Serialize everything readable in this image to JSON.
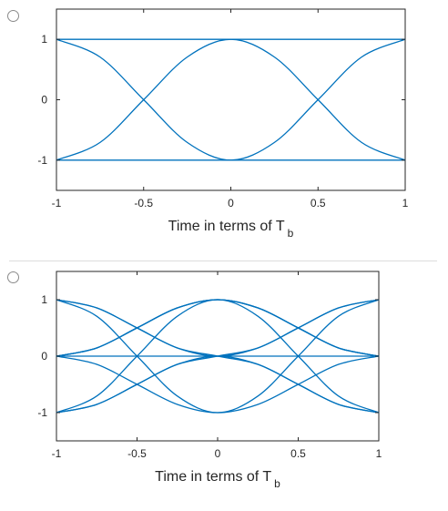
{
  "colors": {
    "curve": "#0072bd",
    "axis": "#262626",
    "radio_border": "#8a8a8a"
  },
  "options": [
    {
      "radio_selected": false,
      "chart_data": {
        "type": "line",
        "title": "",
        "xlabel": "Time in terms of T",
        "xlabel_subscript": "b",
        "ylabel": "",
        "xlim": [
          -1,
          1
        ],
        "ylim": [
          -1.5,
          1.5
        ],
        "xticks": [
          -1,
          -0.5,
          0,
          0.5,
          1
        ],
        "xtick_labels": [
          "-1",
          "-0.5",
          "0",
          "0.5",
          "1"
        ],
        "yticks": [
          1,
          0,
          -1
        ],
        "ytick_labels": [
          "1",
          "0",
          "-1"
        ],
        "grid": false,
        "series": [
          {
            "x": [
              -1,
              -0.75,
              -0.5,
              -0.25,
              0,
              0.25,
              0.5,
              0.75,
              1
            ],
            "values": [
              1,
              1,
              1,
              1,
              1,
              1,
              1,
              1,
              1
            ]
          },
          {
            "x": [
              -1,
              -0.75,
              -0.5,
              -0.25,
              0,
              0.25,
              0.5,
              0.75,
              1
            ],
            "values": [
              -1,
              -1,
              -1,
              -1,
              -1,
              -1,
              -1,
              -1,
              -1
            ]
          },
          {
            "x": [
              -1,
              -0.75,
              -0.5,
              -0.25,
              0,
              0.25,
              0.5,
              0.75,
              1
            ],
            "values": [
              1,
              0.707,
              0,
              -0.707,
              -1,
              -0.707,
              0,
              0.707,
              1
            ]
          },
          {
            "x": [
              -1,
              -0.75,
              -0.5,
              -0.25,
              0,
              0.25,
              0.5,
              0.75,
              1
            ],
            "values": [
              -1,
              -0.707,
              0,
              0.707,
              1,
              0.707,
              0,
              -0.707,
              -1
            ]
          }
        ]
      }
    },
    {
      "radio_selected": false,
      "chart_data": {
        "type": "line",
        "title": "",
        "xlabel": "Time in terms of T",
        "xlabel_subscript": "b",
        "ylabel": "",
        "xlim": [
          -1,
          1
        ],
        "ylim": [
          -1.5,
          1.5
        ],
        "xticks": [
          -1,
          -0.5,
          0,
          0.5,
          1
        ],
        "xtick_labels": [
          "-1",
          "-0.5",
          "0",
          "0.5",
          "1"
        ],
        "yticks": [
          1,
          0,
          -1
        ],
        "ytick_labels": [
          "1",
          "0",
          "-1"
        ],
        "grid": false,
        "series": [
          {
            "x": [
              -1,
              -0.5,
              0,
              0.5,
              1
            ],
            "values": [
              0,
              0,
              0,
              0,
              0
            ]
          },
          {
            "x": [
              -1,
              -0.75,
              -0.5,
              -0.25,
              0,
              0.25,
              0.5,
              0.75,
              1
            ],
            "values": [
              1,
              0.707,
              0,
              -0.707,
              -1,
              -0.707,
              0,
              0.707,
              1
            ]
          },
          {
            "x": [
              -1,
              -0.75,
              -0.5,
              -0.25,
              0,
              0.25,
              0.5,
              0.75,
              1
            ],
            "values": [
              -1,
              -0.707,
              0,
              0.707,
              1,
              0.707,
              0,
              -0.707,
              -1
            ]
          },
          {
            "x": [
              -1,
              -0.75,
              -0.5,
              -0.25,
              0,
              0.25,
              0.5,
              0.75,
              1
            ],
            "values": [
              1,
              0.854,
              0.5,
              0.146,
              0,
              0.146,
              0.5,
              0.854,
              1
            ]
          },
          {
            "x": [
              -1,
              -0.75,
              -0.5,
              -0.25,
              0,
              0.25,
              0.5,
              0.75,
              1
            ],
            "values": [
              -1,
              -0.854,
              -0.5,
              -0.146,
              0,
              -0.146,
              -0.5,
              -0.854,
              -1
            ]
          },
          {
            "x": [
              -1,
              -0.75,
              -0.5,
              -0.25,
              0,
              0.25,
              0.5,
              0.75,
              1
            ],
            "values": [
              0,
              0.146,
              0.5,
              0.854,
              1,
              0.854,
              0.5,
              0.146,
              0
            ]
          },
          {
            "x": [
              -1,
              -0.75,
              -0.5,
              -0.25,
              0,
              0.25,
              0.5,
              0.75,
              1
            ],
            "values": [
              0,
              -0.146,
              -0.5,
              -0.854,
              -1,
              -0.854,
              -0.5,
              -0.146,
              0
            ]
          },
          {
            "x": [
              -1,
              -0.75,
              -0.5,
              -0.25,
              0,
              0.25,
              0.5,
              0.75,
              1
            ],
            "values": [
              1,
              0.854,
              0.5,
              0.146,
              0,
              -0.146,
              -0.5,
              -0.854,
              -1
            ]
          },
          {
            "x": [
              -1,
              -0.75,
              -0.5,
              -0.25,
              0,
              0.25,
              0.5,
              0.75,
              1
            ],
            "values": [
              -1,
              -0.854,
              -0.5,
              -0.146,
              0,
              0.146,
              0.5,
              0.854,
              1
            ]
          },
          {
            "x": [
              -1,
              -0.75,
              -0.5,
              -0.25,
              0,
              0.25,
              0.5,
              0.75,
              1
            ],
            "values": [
              0,
              0.146,
              0.5,
              0.854,
              1,
              0.854,
              0.5,
              0.146,
              0
            ]
          },
          {
            "x": [
              -1,
              -0.75,
              -0.5,
              -0.25,
              0,
              0.25,
              0.5,
              0.75,
              1
            ],
            "values": [
              0,
              0.146,
              0.5,
              0.854,
              1,
              0.854,
              0.5,
              0.146,
              0
            ]
          }
        ]
      }
    }
  ]
}
